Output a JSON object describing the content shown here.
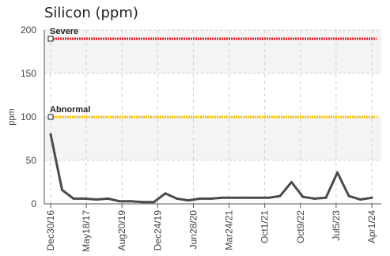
{
  "title": "Silicon (ppm)",
  "chart_data": {
    "type": "line",
    "ylabel": "ppm",
    "ylim": [
      0,
      200
    ],
    "yticks": [
      0,
      50,
      100,
      150,
      200
    ],
    "grid": true,
    "x_tick_labels": [
      "Dec30/16",
      "May18/17",
      "Aug20/19",
      "Dec24/19",
      "Jun28/20",
      "Mar24/21",
      "Oct1/21",
      "Oct9/22",
      "Jul5/23",
      "Apr1/24"
    ],
    "reference_lines": [
      {
        "name": "Severe",
        "value": 190,
        "color": "#e8202a"
      },
      {
        "name": "Abnormal",
        "value": 100,
        "color": "#f5c400"
      }
    ],
    "series": [
      {
        "color": "#4a4a4a",
        "values": [
          80,
          16,
          6,
          6,
          5,
          6,
          3,
          3,
          2,
          2,
          12,
          6,
          4,
          6,
          6,
          7,
          7,
          7,
          7,
          7,
          9,
          25,
          8,
          6,
          7,
          36,
          9,
          5,
          7
        ]
      }
    ]
  }
}
